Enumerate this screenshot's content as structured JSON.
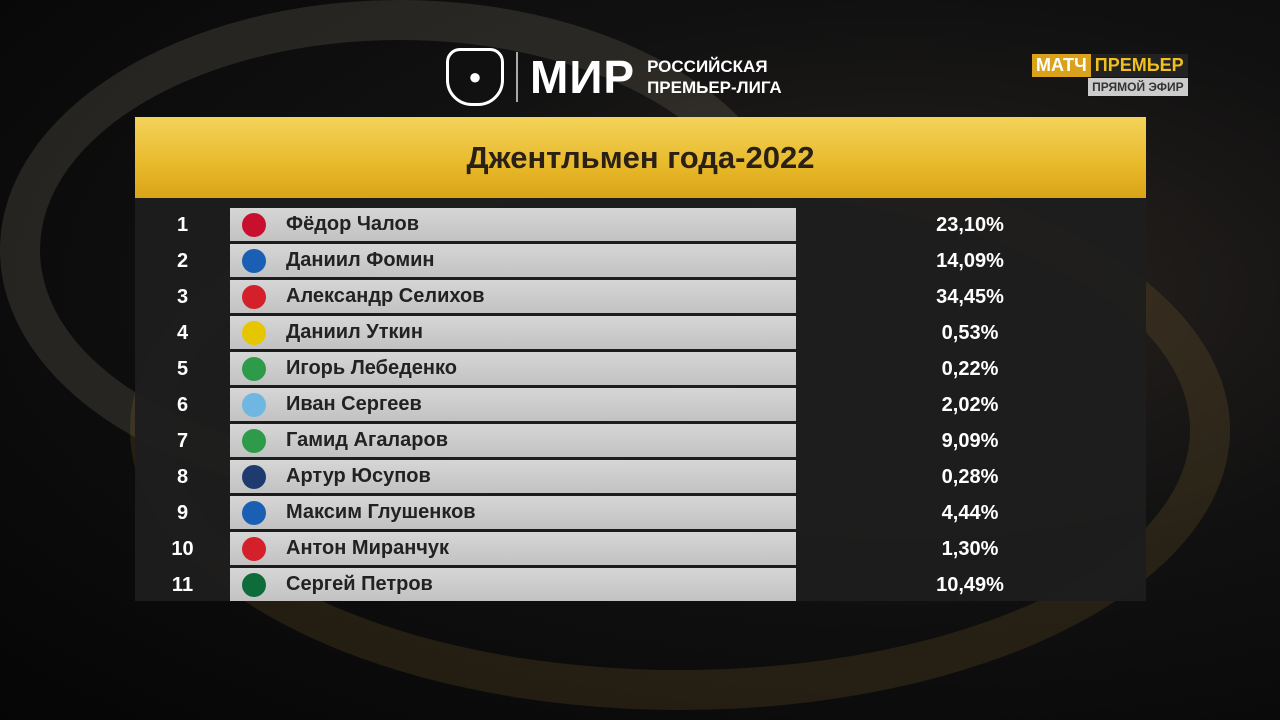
{
  "league_logo": {
    "brand": "МИР",
    "line1": "РОССИЙСКАЯ",
    "line2": "ПРЕМЬЕР-ЛИГА"
  },
  "broadcaster": {
    "part1": "МАТЧ",
    "part2": "ПРЕМЬЕР",
    "status": "ПРЯМОЙ ЭФИР"
  },
  "title": "Джентльмен года-2022",
  "rows": [
    {
      "rank": "1",
      "name": "Фёдор Чалов",
      "percent": "23,10%",
      "club_icon": "cska-crest",
      "club_color": "#c8102e"
    },
    {
      "rank": "2",
      "name": "Даниил Фомин",
      "percent": "14,09%",
      "club_icon": "dynamo-crest",
      "club_color": "#1a5fb4"
    },
    {
      "rank": "3",
      "name": "Александр Селихов",
      "percent": "34,45%",
      "club_icon": "spartak-crest",
      "club_color": "#d3202a"
    },
    {
      "rank": "4",
      "name": "Даниил Уткин",
      "percent": "0,53%",
      "club_icon": "rostov-crest",
      "club_color": "#e5c600"
    },
    {
      "rank": "5",
      "name": "Игорь Лебеденко",
      "percent": "0,22%",
      "club_icon": "torpedo-crest",
      "club_color": "#2e9b4a"
    },
    {
      "rank": "6",
      "name": "Иван Сергеев",
      "percent": "2,02%",
      "club_icon": "fakel-crest",
      "club_color": "#6fb7e0"
    },
    {
      "rank": "7",
      "name": "Гамид Агаларов",
      "percent": "9,09%",
      "club_icon": "akhmat-crest",
      "club_color": "#2e9b4a"
    },
    {
      "rank": "8",
      "name": "Артур Юсупов",
      "percent": "0,28%",
      "club_icon": "sochi-crest",
      "club_color": "#1f3a6e"
    },
    {
      "rank": "9",
      "name": "Максим Глушенков",
      "percent": "4,44%",
      "club_icon": "krylia-crest",
      "club_color": "#1a5fb4"
    },
    {
      "rank": "10",
      "name": "Антон Миранчук",
      "percent": "1,30%",
      "club_icon": "lokomotiv-crest",
      "club_color": "#d3202a"
    },
    {
      "rank": "11",
      "name": "Сергей Петров",
      "percent": "10,49%",
      "club_icon": "krasnodar-crest",
      "club_color": "#0e6b3a"
    }
  ]
}
